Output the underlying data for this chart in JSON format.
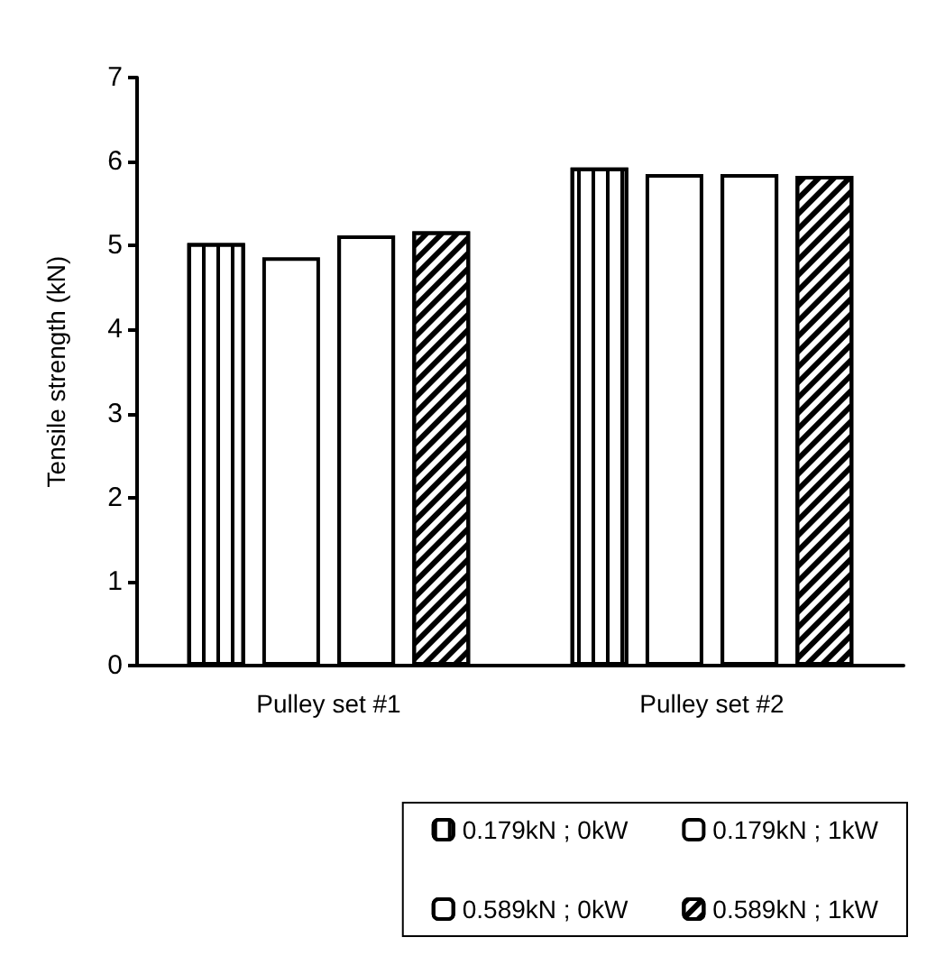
{
  "chart_data": {
    "type": "bar",
    "ylabel": "Tensile strength (kN)",
    "categories": [
      "Pulley set #1",
      "Pulley set #2"
    ],
    "series": [
      {
        "name": "0.179kN ; 0kW",
        "color": "#ffffff",
        "values": [
          5.03,
          5.93
        ]
      },
      {
        "name": "0.179kN ; 1kW",
        "color": "#ffffff",
        "values": [
          4.86,
          5.85
        ]
      },
      {
        "name": "0.589kN ; 0kW",
        "color": "#ffffff",
        "values": [
          5.12,
          5.85
        ]
      },
      {
        "name": "0.589kN ; 1kW",
        "color": "#ffffff",
        "values": [
          5.17,
          5.83
        ]
      }
    ],
    "ylim": [
      0,
      7
    ],
    "yticks": [
      0,
      1,
      2,
      3,
      4,
      5,
      6,
      7
    ],
    "grid": false,
    "legend": "bottom"
  }
}
